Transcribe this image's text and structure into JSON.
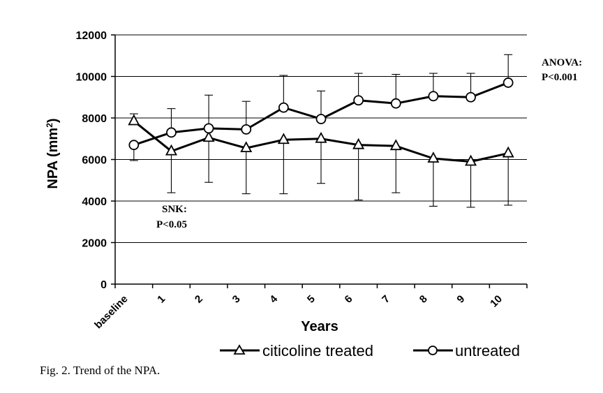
{
  "chart_data": {
    "type": "line",
    "categories": [
      "baseline",
      "1",
      "2",
      "3",
      "4",
      "5",
      "6",
      "7",
      "8",
      "9",
      "10"
    ],
    "ylim": [
      0,
      12000
    ],
    "yticks": [
      "0",
      "2000",
      "4000",
      "6000",
      "8000",
      "10000",
      "12000"
    ],
    "ylabel_main": "NPA (mm",
    "ylabel_sup": "2",
    "ylabel_end": ")",
    "xlabel": "Years",
    "grid": true,
    "legend_position": "bottom",
    "series": [
      {
        "name": "citicoline treated",
        "marker": "triangle",
        "values": [
          7850,
          6400,
          7050,
          6550,
          6950,
          7000,
          6700,
          6650,
          6050,
          5900,
          6300
        ],
        "error_up": [
          8200,
          null,
          null,
          null,
          null,
          null,
          null,
          null,
          null,
          null,
          null
        ],
        "error_down": [
          null,
          4400,
          4900,
          4350,
          4350,
          4850,
          4050,
          4400,
          3750,
          3700,
          3800
        ]
      },
      {
        "name": "untreated",
        "marker": "circle",
        "values": [
          6700,
          7300,
          7500,
          7450,
          8500,
          7950,
          8850,
          8700,
          9050,
          9000,
          9700
        ],
        "error_up": [
          null,
          8450,
          9100,
          8800,
          10050,
          9300,
          10150,
          10100,
          10150,
          10150,
          11050
        ],
        "error_down": [
          5950,
          null,
          null,
          null,
          null,
          null,
          null,
          null,
          null,
          null,
          null
        ]
      }
    ],
    "annotations": {
      "anova_line1": "ANOVA:",
      "anova_line2": "P<0.001",
      "snk_line1": "SNK:",
      "snk_line2": "P<0.05"
    }
  },
  "caption": "Fig. 2. Trend of the NPA."
}
